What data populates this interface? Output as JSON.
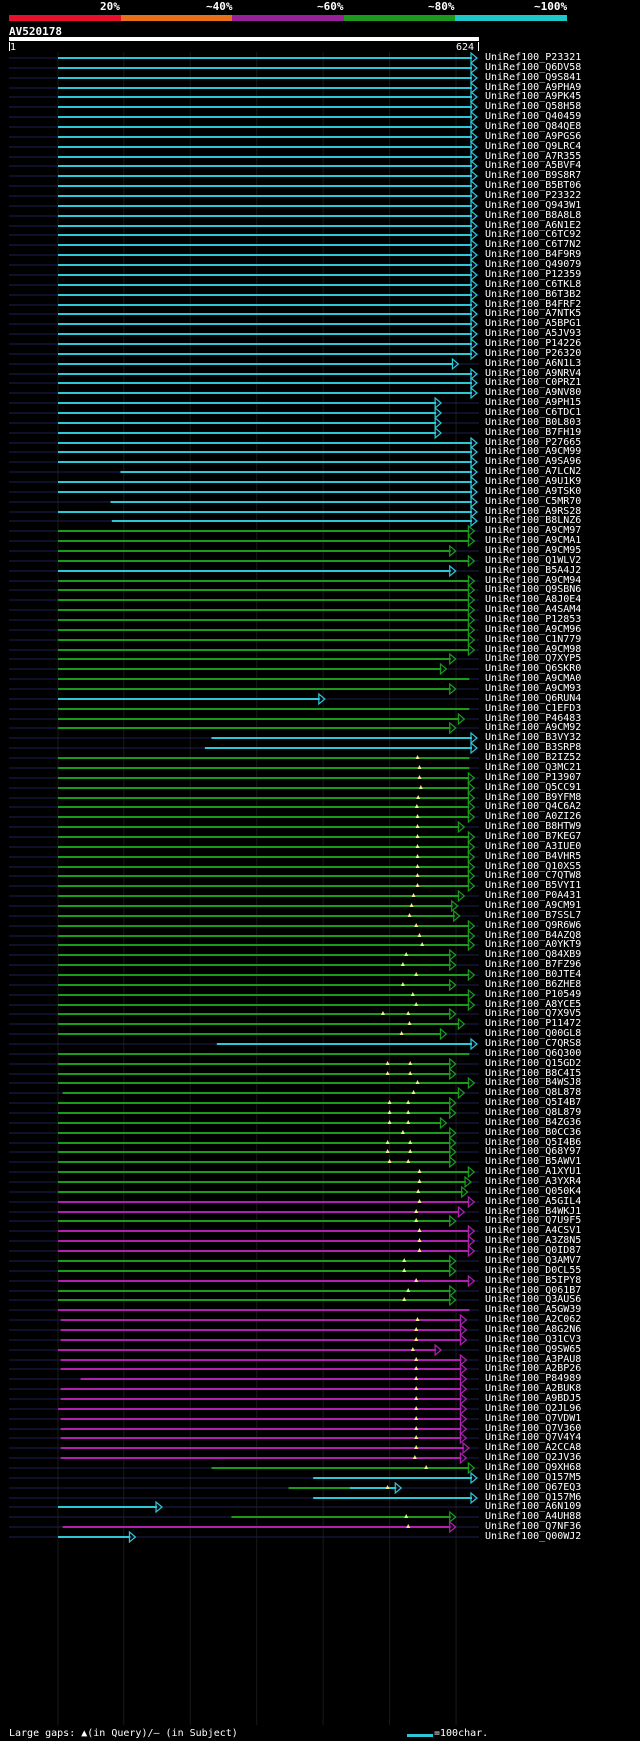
{
  "header": {
    "identity_labels": [
      "20%",
      "~40%",
      "~60%",
      "~80%",
      "~100%"
    ],
    "identity_colors": [
      "#e8102a",
      "#e8701a",
      "#9a209a",
      "#1c9a1c",
      "#1cc8c8"
    ],
    "query_id": "AV520178",
    "query_start": "1",
    "query_end": "624"
  },
  "footer": {
    "legend_text": "Large gaps: ▲(in Query)/– (in Subject)",
    "scale_text": "=100char."
  },
  "hits": [
    {
      "id": "UniRef100_P23321",
      "s": 1,
      "e": 624,
      "c": "cyan",
      "a": 1
    },
    {
      "id": "UniRef100_Q6DV58",
      "s": 1,
      "e": 624,
      "c": "cyan",
      "a": 1
    },
    {
      "id": "UniRef100_Q9S841",
      "s": 1,
      "e": 624,
      "c": "cyan",
      "a": 1
    },
    {
      "id": "UniRef100_A9PHA9",
      "s": 1,
      "e": 624,
      "c": "cyan",
      "a": 1
    },
    {
      "id": "UniRef100_A9PK45",
      "s": 1,
      "e": 624,
      "c": "cyan",
      "a": 1
    },
    {
      "id": "UniRef100_Q58H58",
      "s": 1,
      "e": 624,
      "c": "cyan",
      "a": 1
    },
    {
      "id": "UniRef100_Q40459",
      "s": 1,
      "e": 624,
      "c": "cyan",
      "a": 1
    },
    {
      "id": "UniRef100_Q84QE8",
      "s": 1,
      "e": 624,
      "c": "cyan",
      "a": 1
    },
    {
      "id": "UniRef100_A9PGS6",
      "s": 1,
      "e": 624,
      "c": "cyan",
      "a": 1
    },
    {
      "id": "UniRef100_Q9LRC4",
      "s": 1,
      "e": 624,
      "c": "cyan",
      "a": 1
    },
    {
      "id": "UniRef100_A7R355",
      "s": 1,
      "e": 624,
      "c": "cyan",
      "a": 1
    },
    {
      "id": "UniRef100_A5BVF4",
      "s": 1,
      "e": 624,
      "c": "cyan",
      "a": 1
    },
    {
      "id": "UniRef100_B9S8R7",
      "s": 1,
      "e": 624,
      "c": "cyan",
      "a": 1
    },
    {
      "id": "UniRef100_B5BT06",
      "s": 1,
      "e": 624,
      "c": "cyan",
      "a": 1
    },
    {
      "id": "UniRef100_P23322",
      "s": 1,
      "e": 624,
      "c": "cyan",
      "a": 1
    },
    {
      "id": "UniRef100_Q943W1",
      "s": 1,
      "e": 624,
      "c": "cyan",
      "a": 1
    },
    {
      "id": "UniRef100_B8A8L8",
      "s": 1,
      "e": 624,
      "c": "cyan",
      "a": 1
    },
    {
      "id": "UniRef100_A6N1E2",
      "s": 1,
      "e": 624,
      "c": "cyan",
      "a": 1
    },
    {
      "id": "UniRef100_C6TC92",
      "s": 1,
      "e": 624,
      "c": "cyan",
      "a": 1
    },
    {
      "id": "UniRef100_C6T7N2",
      "s": 1,
      "e": 624,
      "c": "cyan",
      "a": 1
    },
    {
      "id": "UniRef100_B4F9R9",
      "s": 1,
      "e": 624,
      "c": "cyan",
      "a": 1
    },
    {
      "id": "UniRef100_Q49079",
      "s": 1,
      "e": 624,
      "c": "cyan",
      "a": 1
    },
    {
      "id": "UniRef100_P12359",
      "s": 1,
      "e": 624,
      "c": "cyan",
      "a": 1
    },
    {
      "id": "UniRef100_C6TKL8",
      "s": 1,
      "e": 624,
      "c": "cyan",
      "a": 1
    },
    {
      "id": "UniRef100_B6T3B2",
      "s": 1,
      "e": 624,
      "c": "cyan",
      "a": 1
    },
    {
      "id": "UniRef100_B4FRF2",
      "s": 1,
      "e": 624,
      "c": "cyan",
      "a": 1
    },
    {
      "id": "UniRef100_A7NTK5",
      "s": 1,
      "e": 624,
      "c": "cyan",
      "a": 1
    },
    {
      "id": "UniRef100_A5BPG1",
      "s": 1,
      "e": 624,
      "c": "cyan",
      "a": 1
    },
    {
      "id": "UniRef100_A5JV93",
      "s": 1,
      "e": 624,
      "c": "cyan",
      "a": 1
    },
    {
      "id": "UniRef100_P14226",
      "s": 1,
      "e": 624,
      "c": "cyan",
      "a": 1
    },
    {
      "id": "UniRef100_P26320",
      "s": 1,
      "e": 624,
      "c": "cyan",
      "a": 1
    },
    {
      "id": "UniRef100_A6N1L3",
      "s": 1,
      "e": 596,
      "c": "cyan",
      "a": 1
    },
    {
      "id": "UniRef100_A9NRV4",
      "s": 1,
      "e": 624,
      "c": "cyan",
      "a": 1
    },
    {
      "id": "UniRef100_C0PRZ1",
      "s": 1,
      "e": 624,
      "c": "cyan",
      "a": 1
    },
    {
      "id": "UniRef100_A9NV80",
      "s": 1,
      "e": 624,
      "c": "cyan",
      "a": 1
    },
    {
      "id": "UniRef100_A9PH15",
      "s": 1,
      "e": 570,
      "c": "cyan",
      "a": 1
    },
    {
      "id": "UniRef100_C6TDC1",
      "s": 1,
      "e": 570,
      "c": "cyan",
      "a": 1
    },
    {
      "id": "UniRef100_B0L803",
      "s": 1,
      "e": 570,
      "c": "cyan",
      "a": 1
    },
    {
      "id": "UniRef100_B7FH19",
      "s": 1,
      "e": 570,
      "c": "cyan",
      "a": 1
    },
    {
      "id": "UniRef100_P27665",
      "s": 1,
      "e": 624,
      "c": "cyan",
      "a": 1
    },
    {
      "id": "UniRef100_A9CM99",
      "s": 1,
      "e": 624,
      "c": "cyan",
      "a": 1
    },
    {
      "id": "UniRef100_A9SA96",
      "s": 1,
      "e": 624,
      "c": "cyan",
      "a": 1
    },
    {
      "id": "UniRef100_A7LCN2",
      "s": 95,
      "e": 624,
      "c": "cyan",
      "a": 1
    },
    {
      "id": "UniRef100_A9U1K9",
      "s": 1,
      "e": 624,
      "c": "cyan",
      "a": 1
    },
    {
      "id": "UniRef100_A9TSK0",
      "s": 1,
      "e": 624,
      "c": "cyan",
      "a": 1
    },
    {
      "id": "UniRef100_C5MR70",
      "s": 80,
      "e": 624,
      "c": "cyan",
      "a": 1
    },
    {
      "id": "UniRef100_A9RS28",
      "s": 1,
      "e": 624,
      "c": "cyan",
      "a": 1
    },
    {
      "id": "UniRef100_B8LNZ6",
      "s": 82,
      "e": 624,
      "c": "cyan",
      "a": 1
    },
    {
      "id": "UniRef100_A9CM97",
      "s": 1,
      "e": 620,
      "c": "green",
      "a": 1
    },
    {
      "id": "UniRef100_A9CMA1",
      "s": 1,
      "e": 620,
      "c": "green",
      "a": 1
    },
    {
      "id": "UniRef100_A9CM95",
      "s": 1,
      "e": 592,
      "c": "green",
      "a": 1
    },
    {
      "id": "UniRef100_Q1WLV2",
      "s": 1,
      "e": 620,
      "c": "green",
      "a": 1
    },
    {
      "id": "UniRef100_B5A4J2",
      "s": 1,
      "e": 592,
      "c": "cyan",
      "a": 1
    },
    {
      "id": "UniRef100_A9CM94",
      "s": 1,
      "e": 620,
      "c": "green",
      "a": 1
    },
    {
      "id": "UniRef100_Q9SBN6",
      "s": 1,
      "e": 620,
      "c": "green",
      "a": 1
    },
    {
      "id": "UniRef100_A8J0E4",
      "s": 1,
      "e": 620,
      "c": "green",
      "a": 1
    },
    {
      "id": "UniRef100_A4SAM4",
      "s": 1,
      "e": 620,
      "c": "green",
      "a": 1
    },
    {
      "id": "UniRef100_P12853",
      "s": 1,
      "e": 620,
      "c": "green",
      "a": 1
    },
    {
      "id": "UniRef100_A9CM96",
      "s": 1,
      "e": 620,
      "c": "green",
      "a": 1
    },
    {
      "id": "UniRef100_C1N779",
      "s": 1,
      "e": 620,
      "c": "green",
      "a": 1
    },
    {
      "id": "UniRef100_A9CM98",
      "s": 1,
      "e": 620,
      "c": "green",
      "a": 1
    },
    {
      "id": "UniRef100_Q7XYP5",
      "s": 1,
      "e": 592,
      "c": "green",
      "a": 1
    },
    {
      "id": "UniRef100_Q6SKR0",
      "s": 1,
      "e": 578,
      "c": "green",
      "a": 1
    },
    {
      "id": "UniRef100_A9CMA0",
      "s": 1,
      "e": 620,
      "c": "green",
      "a": 0
    },
    {
      "id": "UniRef100_A9CM93",
      "s": 1,
      "e": 592,
      "c": "green",
      "a": 1
    },
    {
      "id": "UniRef100_Q6RUN4",
      "s": 1,
      "e": 395,
      "c": "cyan",
      "a": 1
    },
    {
      "id": "UniRef100_C1EFD3",
      "s": 1,
      "e": 620,
      "c": "green",
      "a": 0
    },
    {
      "id": "UniRef100_P46483",
      "s": 1,
      "e": 605,
      "c": "green",
      "a": 1
    },
    {
      "id": "UniRef100_A9CM92",
      "s": 1,
      "e": 592,
      "c": "green",
      "a": 1
    },
    {
      "id": "UniRef100_B3VY32",
      "s": 232,
      "e": 624,
      "c": "cyan",
      "a": 1
    },
    {
      "id": "UniRef100_B3SRP8",
      "s": 222,
      "e": 624,
      "c": "cyan",
      "a": 1
    },
    {
      "id": "UniRef100_B2IZ52",
      "s": 1,
      "e": 620,
      "c": "green",
      "a": 0,
      "g": [
        542
      ]
    },
    {
      "id": "UniRef100_Q3MC21",
      "s": 1,
      "e": 620,
      "c": "green",
      "a": 0,
      "g": [
        545
      ]
    },
    {
      "id": "UniRef100_P13907",
      "s": 1,
      "e": 620,
      "c": "green",
      "a": 1,
      "g": [
        545
      ]
    },
    {
      "id": "UniRef100_Q5CC91",
      "s": 1,
      "e": 620,
      "c": "green",
      "a": 1,
      "g": [
        547
      ]
    },
    {
      "id": "UniRef100_B9YFM8",
      "s": 1,
      "e": 620,
      "c": "green",
      "a": 1,
      "g": [
        543
      ]
    },
    {
      "id": "UniRef100_Q4C6A2",
      "s": 1,
      "e": 620,
      "c": "green",
      "a": 1,
      "g": [
        541
      ]
    },
    {
      "id": "UniRef100_A0ZI26",
      "s": 1,
      "e": 620,
      "c": "green",
      "a": 1,
      "g": [
        542
      ]
    },
    {
      "id": "UniRef100_B8HTW9",
      "s": 1,
      "e": 605,
      "c": "green",
      "a": 1,
      "g": [
        542
      ]
    },
    {
      "id": "UniRef100_B7KEG7",
      "s": 1,
      "e": 620,
      "c": "green",
      "a": 1,
      "g": [
        542
      ]
    },
    {
      "id": "UniRef100_A3IUE0",
      "s": 1,
      "e": 620,
      "c": "green",
      "a": 1,
      "g": [
        542
      ]
    },
    {
      "id": "UniRef100_B4VHR5",
      "s": 1,
      "e": 620,
      "c": "green",
      "a": 1,
      "g": [
        542
      ]
    },
    {
      "id": "UniRef100_Q10XS5",
      "s": 1,
      "e": 620,
      "c": "green",
      "a": 1,
      "g": [
        542
      ]
    },
    {
      "id": "UniRef100_C7QTW8",
      "s": 1,
      "e": 620,
      "c": "green",
      "a": 1,
      "g": [
        542
      ]
    },
    {
      "id": "UniRef100_B5VYI1",
      "s": 1,
      "e": 620,
      "c": "green",
      "a": 1,
      "g": [
        542
      ]
    },
    {
      "id": "UniRef100_P0A431",
      "s": 1,
      "e": 605,
      "c": "green",
      "a": 1,
      "g": [
        536
      ]
    },
    {
      "id": "UniRef100_A9CM91",
      "s": 1,
      "e": 595,
      "c": "green",
      "a": 1,
      "g": [
        533
      ]
    },
    {
      "id": "UniRef100_B7SSL7",
      "s": 1,
      "e": 598,
      "c": "green",
      "a": 1,
      "g": [
        530
      ]
    },
    {
      "id": "UniRef100_Q9R6W6",
      "s": 1,
      "e": 620,
      "c": "green",
      "a": 1,
      "g": [
        540
      ]
    },
    {
      "id": "UniRef100_B4AZQ8",
      "s": 1,
      "e": 620,
      "c": "green",
      "a": 1,
      "g": [
        545
      ]
    },
    {
      "id": "UniRef100_A0YKT9",
      "s": 1,
      "e": 620,
      "c": "green",
      "a": 1,
      "g": [
        549
      ]
    },
    {
      "id": "UniRef100_Q84XB9",
      "s": 1,
      "e": 592,
      "c": "green",
      "a": 1,
      "g": [
        525
      ]
    },
    {
      "id": "UniRef100_B7FZ96",
      "s": 1,
      "e": 592,
      "c": "green",
      "a": 1,
      "g": [
        520
      ]
    },
    {
      "id": "UniRef100_B0JTE4",
      "s": 1,
      "e": 620,
      "c": "green",
      "a": 1,
      "g": [
        540
      ]
    },
    {
      "id": "UniRef100_B6ZHE8",
      "s": 1,
      "e": 592,
      "c": "green",
      "a": 1,
      "g": [
        520
      ]
    },
    {
      "id": "UniRef100_P10549",
      "s": 1,
      "e": 620,
      "c": "green",
      "a": 1,
      "g": [
        535
      ]
    },
    {
      "id": "UniRef100_A8YCE5",
      "s": 1,
      "e": 620,
      "c": "green",
      "a": 1,
      "g": [
        540
      ]
    },
    {
      "id": "UniRef100_Q7X9V5",
      "s": 1,
      "e": 592,
      "c": "green",
      "a": 1,
      "g": [
        490,
        528
      ]
    },
    {
      "id": "UniRef100_P11472",
      "s": 1,
      "e": 605,
      "c": "green",
      "a": 1,
      "g": [
        530
      ]
    },
    {
      "id": "UniRef100_Q00GL8",
      "s": 1,
      "e": 578,
      "c": "green",
      "a": 1,
      "g": [
        518
      ]
    },
    {
      "id": "UniRef100_C7QRS8",
      "s": 240,
      "e": 624,
      "c": "cyan",
      "a": 1
    },
    {
      "id": "UniRef100_Q6Q300",
      "s": 1,
      "e": 620,
      "c": "green",
      "a": 0
    },
    {
      "id": "UniRef100_Q15GD2",
      "s": 1,
      "e": 592,
      "c": "green",
      "a": 1,
      "g": [
        497,
        531
      ]
    },
    {
      "id": "UniRef100_B8C4I5",
      "s": 1,
      "e": 592,
      "c": "green",
      "a": 1,
      "g": [
        497,
        531
      ]
    },
    {
      "id": "UniRef100_B4WSJ8",
      "s": 1,
      "e": 620,
      "c": "green",
      "a": 1,
      "g": [
        542
      ]
    },
    {
      "id": "UniRef100_Q8L878",
      "s": 8,
      "e": 605,
      "c": "green",
      "a": 1,
      "g": [
        536
      ]
    },
    {
      "id": "UniRef100_Q5I4B7",
      "s": 1,
      "e": 592,
      "c": "green",
      "a": 1,
      "g": [
        500,
        528
      ]
    },
    {
      "id": "UniRef100_Q8L879",
      "s": 1,
      "e": 592,
      "c": "green",
      "a": 1,
      "g": [
        500,
        528
      ]
    },
    {
      "id": "UniRef100_B4ZG36",
      "s": 1,
      "e": 578,
      "c": "green",
      "a": 1,
      "g": [
        500,
        528
      ]
    },
    {
      "id": "UniRef100_B0CC36",
      "s": 1,
      "e": 592,
      "c": "green",
      "a": 1,
      "g": [
        520
      ]
    },
    {
      "id": "UniRef100_Q5I4B6",
      "s": 1,
      "e": 592,
      "c": "green",
      "a": 1,
      "g": [
        497,
        531
      ]
    },
    {
      "id": "UniRef100_Q68Y97",
      "s": 1,
      "e": 592,
      "c": "green",
      "a": 1,
      "g": [
        497,
        531
      ]
    },
    {
      "id": "UniRef100_B5AWV1",
      "s": 1,
      "e": 592,
      "c": "green",
      "a": 1,
      "g": [
        500,
        528
      ]
    },
    {
      "id": "UniRef100_A1XYU1",
      "s": 1,
      "e": 620,
      "c": "green",
      "a": 1,
      "g": [
        545
      ]
    },
    {
      "id": "UniRef100_A3YXR4",
      "s": 1,
      "e": 615,
      "c": "green",
      "a": 1,
      "g": [
        545
      ]
    },
    {
      "id": "UniRef100_Q050K4",
      "s": 1,
      "e": 610,
      "c": "green",
      "a": 1,
      "g": [
        543
      ]
    },
    {
      "id": "UniRef100_A5GIL4",
      "s": 1,
      "e": 620,
      "c": "magenta",
      "a": 1,
      "g": [
        545
      ]
    },
    {
      "id": "UniRef100_B4WKJ1",
      "s": 1,
      "e": 605,
      "c": "magenta",
      "a": 1,
      "g": [
        540
      ]
    },
    {
      "id": "UniRef100_Q7U9F5",
      "s": 1,
      "e": 592,
      "c": "green",
      "a": 1,
      "g": [
        540
      ]
    },
    {
      "id": "UniRef100_A4CSV1",
      "s": 1,
      "e": 620,
      "c": "magenta",
      "a": 1,
      "g": [
        545
      ]
    },
    {
      "id": "UniRef100_A3Z8N5",
      "s": 1,
      "e": 620,
      "c": "magenta",
      "a": 1,
      "g": [
        545
      ]
    },
    {
      "id": "UniRef100_Q0ID87",
      "s": 1,
      "e": 620,
      "c": "magenta",
      "a": 1,
      "g": [
        545
      ]
    },
    {
      "id": "UniRef100_Q3AMV7",
      "s": 1,
      "e": 592,
      "c": "green",
      "a": 1,
      "g": [
        522
      ]
    },
    {
      "id": "UniRef100_D0CL55",
      "s": 1,
      "e": 592,
      "c": "green",
      "a": 1,
      "g": [
        522
      ]
    },
    {
      "id": "UniRef100_B5IPY8",
      "s": 1,
      "e": 620,
      "c": "magenta",
      "a": 1,
      "g": [
        540
      ]
    },
    {
      "id": "UniRef100_Q061B7",
      "s": 1,
      "e": 592,
      "c": "green",
      "a": 1,
      "g": [
        528
      ]
    },
    {
      "id": "UniRef100_Q3AUS6",
      "s": 1,
      "e": 592,
      "c": "green",
      "a": 1,
      "g": [
        522
      ]
    },
    {
      "id": "UniRef100_A5GW39",
      "s": 1,
      "e": 620,
      "c": "magenta",
      "a": 0
    },
    {
      "id": "UniRef100_A2C062",
      "s": 5,
      "e": 608,
      "c": "magenta",
      "a": 1,
      "g": [
        542
      ]
    },
    {
      "id": "UniRef100_A8G2N6",
      "s": 5,
      "e": 608,
      "c": "magenta",
      "a": 1,
      "g": [
        540
      ]
    },
    {
      "id": "UniRef100_Q31CV3",
      "s": 5,
      "e": 608,
      "c": "magenta",
      "a": 1,
      "g": [
        540
      ]
    },
    {
      "id": "UniRef100_Q9SW65",
      "s": 1,
      "e": 570,
      "c": "magenta",
      "a": 1,
      "g": [
        535
      ]
    },
    {
      "id": "UniRef100_A3PAU8",
      "s": 5,
      "e": 608,
      "c": "magenta",
      "a": 1,
      "g": [
        540
      ]
    },
    {
      "id": "UniRef100_A2BP26",
      "s": 5,
      "e": 608,
      "c": "magenta",
      "a": 1,
      "g": [
        540
      ]
    },
    {
      "id": "UniRef100_P84989",
      "s": 35,
      "e": 608,
      "c": "magenta",
      "a": 1,
      "g": [
        540
      ]
    },
    {
      "id": "UniRef100_A2BUK8",
      "s": 5,
      "e": 608,
      "c": "magenta",
      "a": 1,
      "g": [
        540
      ]
    },
    {
      "id": "UniRef100_A9BDJ5",
      "s": 5,
      "e": 608,
      "c": "magenta",
      "a": 1,
      "g": [
        540
      ]
    },
    {
      "id": "UniRef100_Q2JL96",
      "s": 1,
      "e": 608,
      "c": "magenta",
      "a": 1,
      "g": [
        540
      ]
    },
    {
      "id": "UniRef100_Q7VDW1",
      "s": 5,
      "e": 608,
      "c": "magenta",
      "a": 1,
      "g": [
        540
      ]
    },
    {
      "id": "UniRef100_Q7V360",
      "s": 5,
      "e": 608,
      "c": "magenta",
      "a": 1,
      "g": [
        540
      ]
    },
    {
      "id": "UniRef100_Q7V4Y4",
      "s": 5,
      "e": 608,
      "c": "magenta",
      "a": 1,
      "g": [
        540
      ]
    },
    {
      "id": "UniRef100_A2CCA8",
      "s": 5,
      "e": 612,
      "c": "magenta",
      "a": 1,
      "g": [
        540
      ]
    },
    {
      "id": "UniRef100_Q2JV36",
      "s": 5,
      "e": 608,
      "c": "magenta",
      "a": 1,
      "g": [
        538
      ]
    },
    {
      "id": "UniRef100_Q9XH68",
      "s": 232,
      "e": 620,
      "c": "green",
      "a": 1,
      "g": [
        555
      ]
    },
    {
      "id": "UniRef100_Q157M5",
      "s": 385,
      "e": 624,
      "c": "cyan",
      "a": 1
    },
    {
      "id": "UniRef100_Q67EQ3",
      "s": 348,
      "e": 440,
      "c": "green",
      "a": 0,
      "seg": [
        440,
        440,
        510,
        "cyan",
        1
      ],
      "g": [
        497
      ]
    },
    {
      "id": "UniRef100_Q157M6",
      "s": 385,
      "e": 624,
      "c": "cyan",
      "a": 1
    },
    {
      "id": "UniRef100_A6N109",
      "s": 1,
      "e": 150,
      "c": "cyan",
      "a": 1
    },
    {
      "id": "UniRef100_A4UH88",
      "s": 262,
      "e": 592,
      "c": "green",
      "a": 1,
      "g": [
        525
      ]
    },
    {
      "id": "UniRef100_Q7NF36",
      "s": 8,
      "e": 592,
      "c": "magenta",
      "a": 1,
      "g": [
        528
      ]
    },
    {
      "id": "UniRef100_Q00WJ2",
      "s": 1,
      "e": 110,
      "c": "cyan",
      "a": 1
    }
  ]
}
